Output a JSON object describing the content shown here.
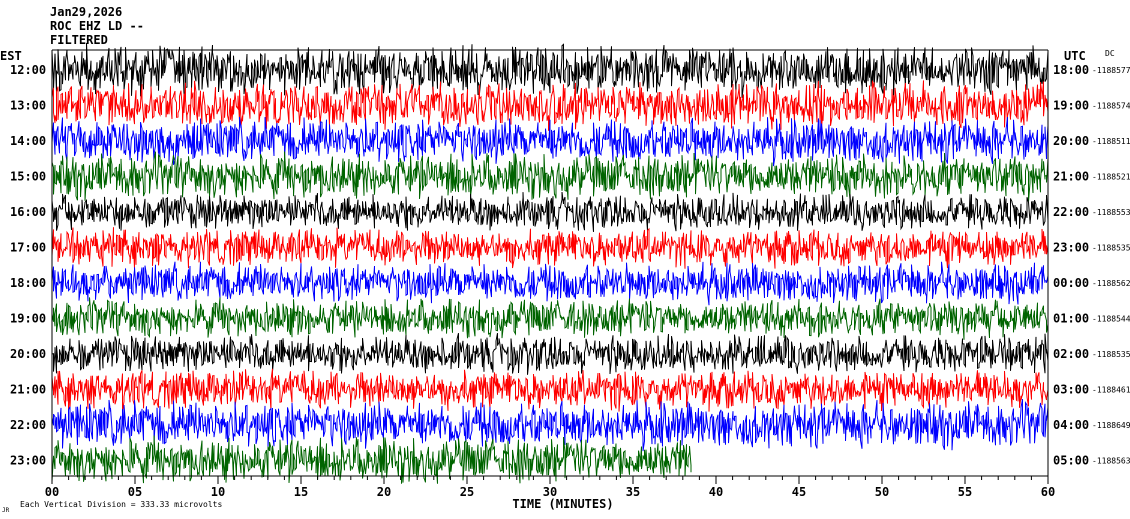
{
  "header": {
    "date": "Jan29,2026",
    "station": "ROC EHZ LD --",
    "filter": "FILTERED"
  },
  "labels": {
    "left_tz": "EST",
    "right_tz": "UTC",
    "dc": "DC",
    "scale_note": "Each Vertical Division = 333.33 microvolts",
    "mark": "JR"
  },
  "chart_data": {
    "type": "line",
    "xlabel": "TIME (MINUTES)",
    "xlim": [
      0,
      60
    ],
    "x_ticks": [
      "00",
      "05",
      "10",
      "15",
      "20",
      "25",
      "30",
      "35",
      "40",
      "45",
      "50",
      "55",
      "60"
    ],
    "trace_colors": [
      "#000000",
      "#ff0000",
      "#0000ff",
      "#006400"
    ],
    "rows": [
      {
        "local": "12:00",
        "utc": "18:00",
        "dc": "-1188577",
        "amplitude": 1.45
      },
      {
        "local": "13:00",
        "utc": "19:00",
        "dc": "-1188574",
        "amplitude": 1.35
      },
      {
        "local": "14:00",
        "utc": "20:00",
        "dc": "-1188511",
        "amplitude": 1.3
      },
      {
        "local": "15:00",
        "utc": "21:00",
        "dc": "-1188521",
        "amplitude": 1.3
      },
      {
        "local": "16:00",
        "utc": "22:00",
        "dc": "-1188553",
        "amplitude": 1.05
      },
      {
        "local": "17:00",
        "utc": "23:00",
        "dc": "-1188535",
        "amplitude": 1.1
      },
      {
        "local": "18:00",
        "utc": "00:00",
        "dc": "-1188562",
        "amplitude": 1.15
      },
      {
        "local": "19:00",
        "utc": "01:00",
        "dc": "-1188544",
        "amplitude": 1.1
      },
      {
        "local": "20:00",
        "utc": "02:00",
        "dc": "-1188535",
        "amplitude": 1.1
      },
      {
        "local": "21:00",
        "utc": "03:00",
        "dc": "-1188461",
        "amplitude": 1.15
      },
      {
        "local": "22:00",
        "utc": "04:00",
        "dc": "-1188649",
        "amplitude": 1.35
      },
      {
        "local": "23:00",
        "utc": "05:00",
        "dc": "-1188563",
        "amplitude": 1.3
      }
    ],
    "last_row_end_minute": 38.5
  }
}
